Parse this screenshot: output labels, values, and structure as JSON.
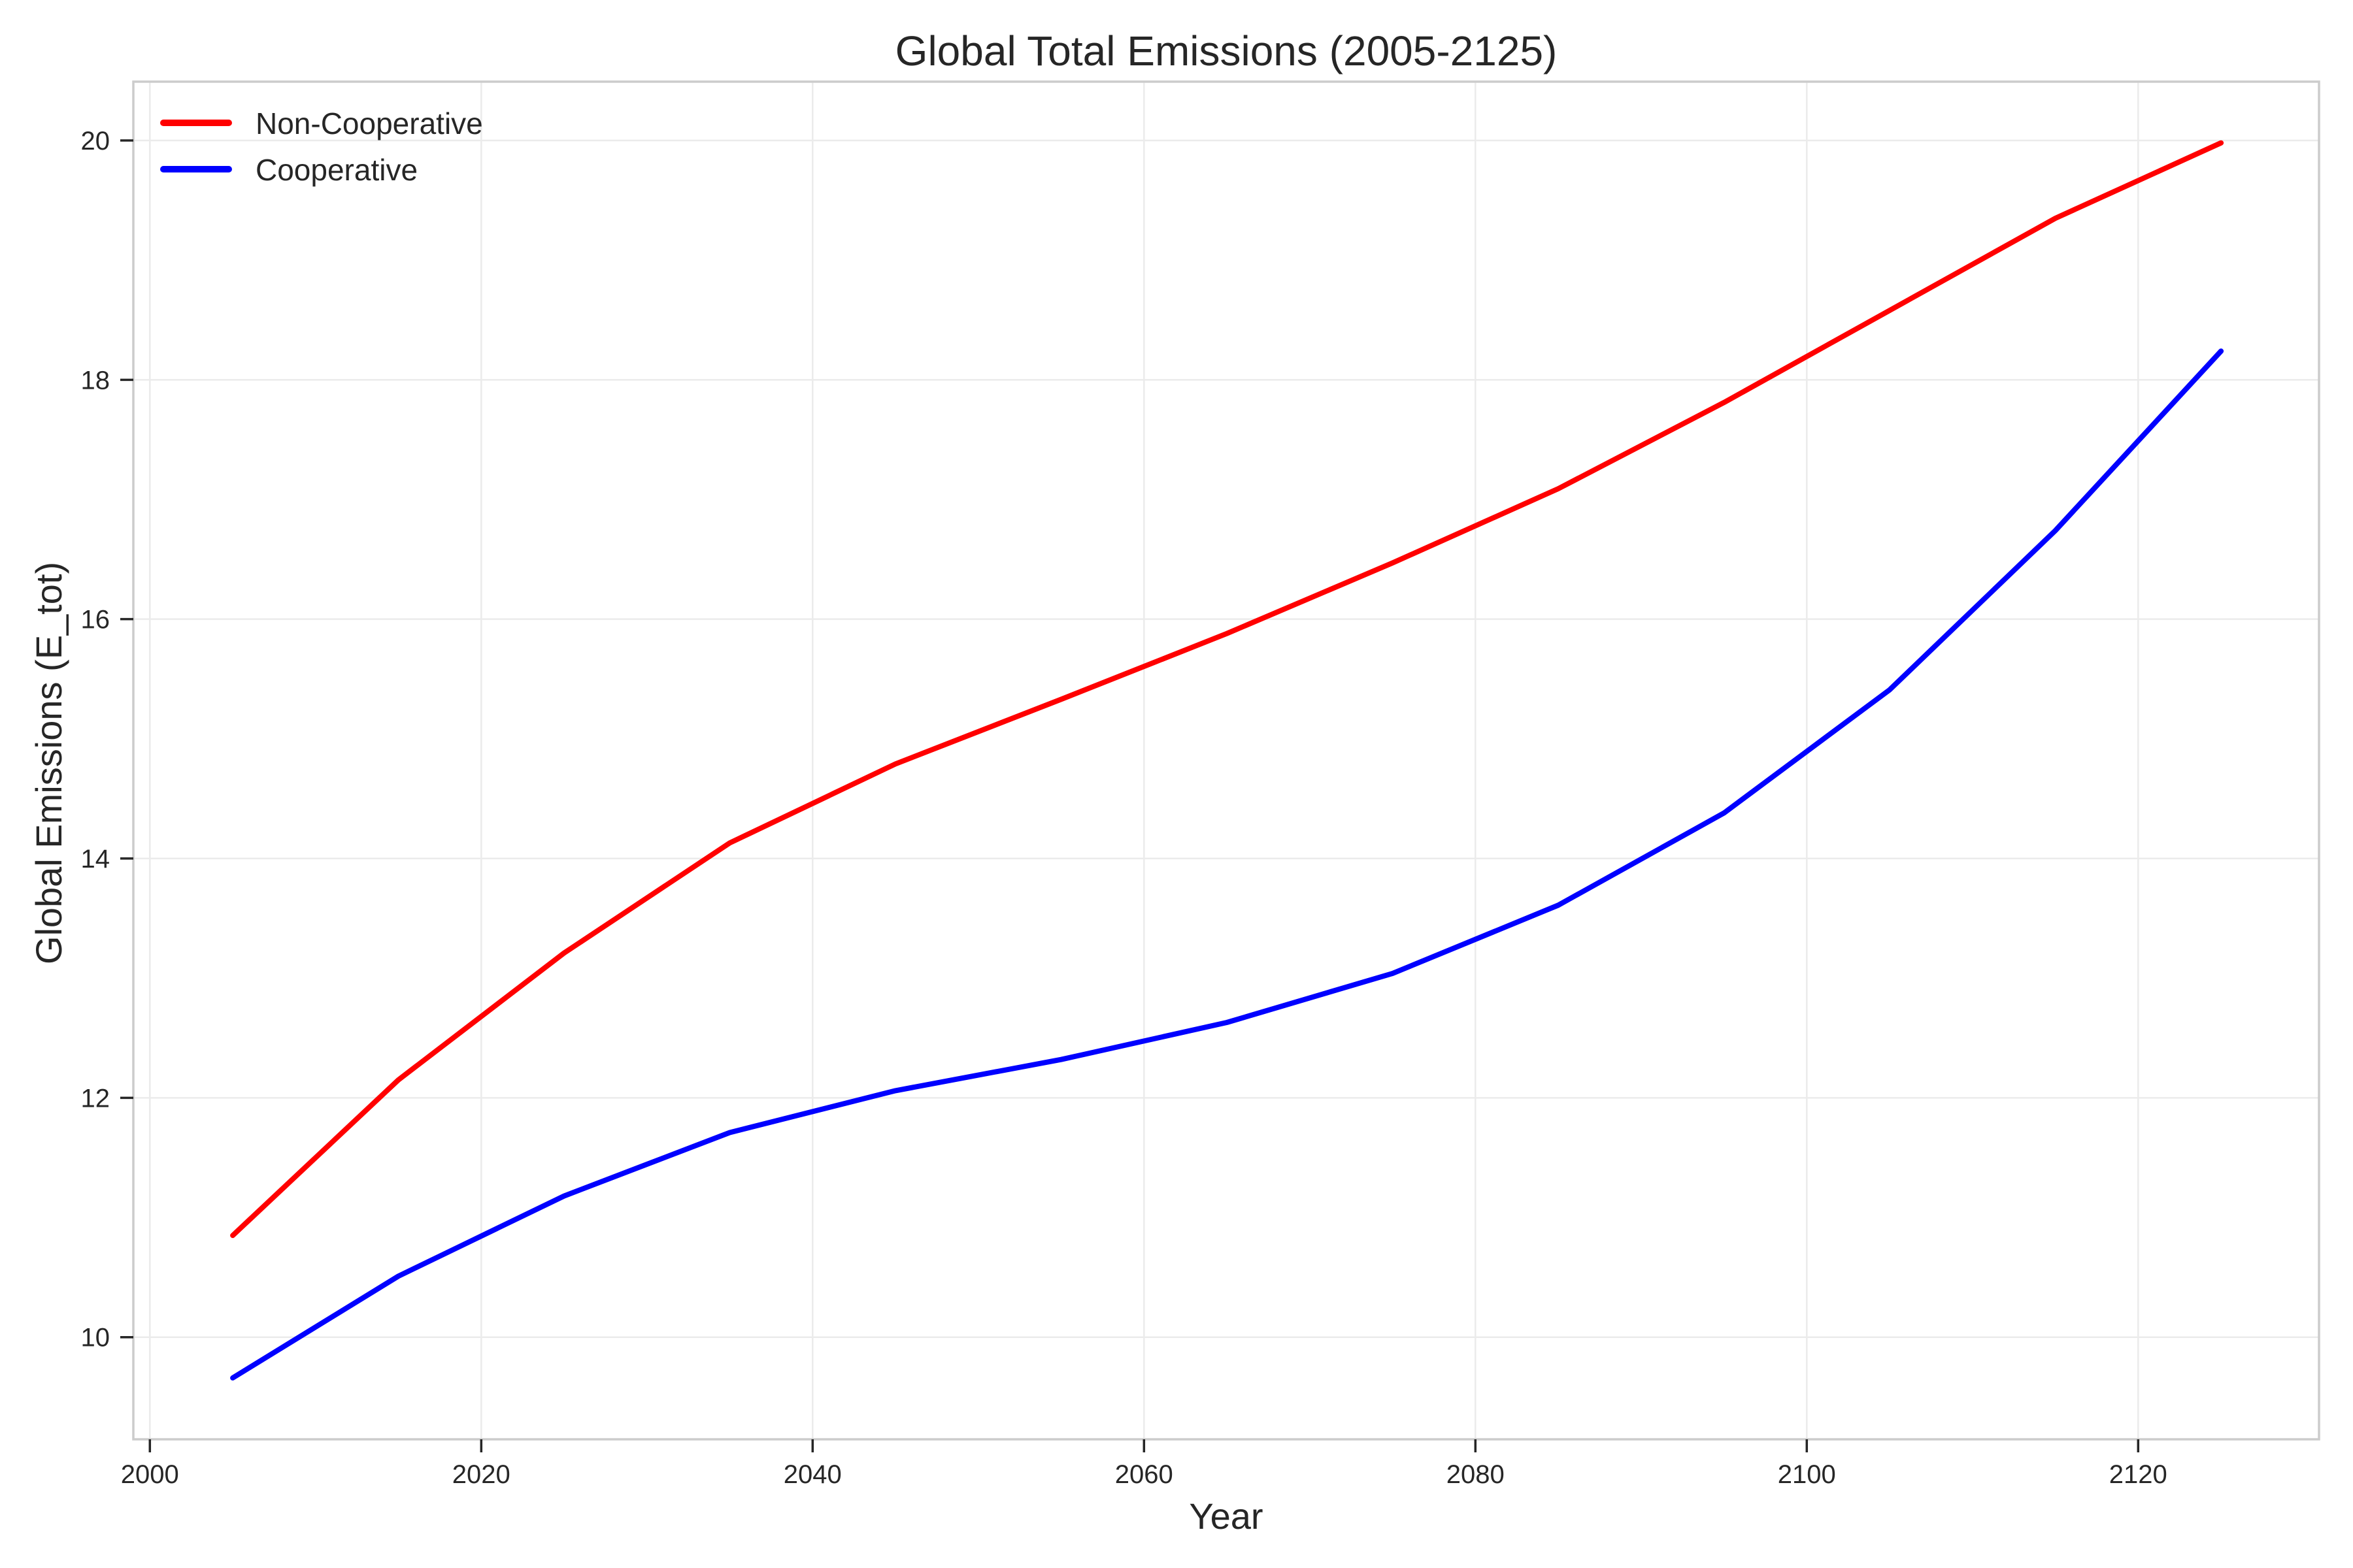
{
  "chart_data": {
    "type": "line",
    "title": "Global Total Emissions (2005-2125)",
    "xlabel": "Year",
    "ylabel": "Global Emissions (E_tot)",
    "xlim": [
      1999,
      2131
    ],
    "ylim": [
      9.2,
      20.5
    ],
    "grid": true,
    "legend_position": "top-left",
    "x_ticks": [
      2000,
      2020,
      2040,
      2060,
      2080,
      2100,
      2120
    ],
    "x_tick_labels": [
      "2000",
      "2020",
      "2040",
      "2060",
      "2080",
      "2100",
      "2120"
    ],
    "y_ticks": [
      10,
      12,
      14,
      16,
      18,
      20
    ],
    "y_tick_labels": [
      "10",
      "12",
      "14",
      "16",
      "18",
      "20"
    ],
    "x": [
      2005,
      2015,
      2025,
      2035,
      2045,
      2055,
      2065,
      2075,
      2085,
      2095,
      2105,
      2115,
      2125
    ],
    "series": [
      {
        "name": "Non-Cooperative",
        "color": "#ff0000",
        "values": [
          10.85,
          12.15,
          13.21,
          14.13,
          14.79,
          15.33,
          15.88,
          16.47,
          17.09,
          17.81,
          18.58,
          19.35,
          19.98
        ]
      },
      {
        "name": "Cooperative",
        "color": "#0000ff",
        "values": [
          9.66,
          10.51,
          11.18,
          11.71,
          12.06,
          12.32,
          12.63,
          13.04,
          13.61,
          14.38,
          15.41,
          16.74,
          18.24
        ]
      }
    ]
  }
}
